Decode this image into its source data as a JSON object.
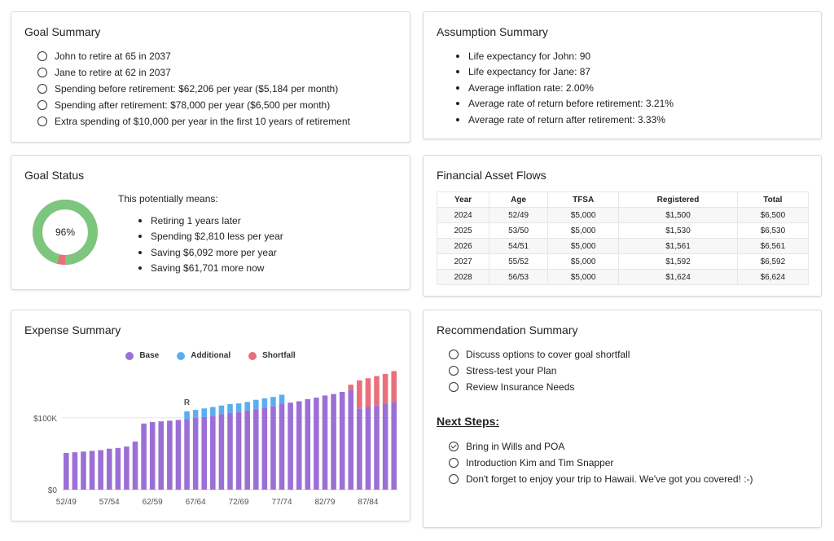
{
  "goal_summary": {
    "title": "Goal Summary",
    "items": [
      "John to retire at 65 in 2037",
      "Jane to retire at 62 in 2037",
      "Spending before retirement: $62,206 per year ($5,184 per month)",
      "Spending after retirement: $78,000 per year ($6,500 per month)",
      "Extra spending of $10,000 per year in the first 10 years of retirement"
    ]
  },
  "assumption_summary": {
    "title": "Assumption Summary",
    "items": [
      "Life expectancy for John: 90",
      "Life expectancy for Jane: 87",
      "Average inflation rate: 2.00%",
      "Average rate of return before retirement: 3.21%",
      "Average rate of return after retirement: 3.33%"
    ]
  },
  "goal_status": {
    "title": "Goal Status",
    "percent_label": "96%",
    "percent": 0.96,
    "means_title": "This potentially means:",
    "items": [
      "Retiring 1 years later",
      "Spending $2,810 less per year",
      "Saving $6,092 more per year",
      "Saving $61,701 more now"
    ],
    "colors": {
      "achieved": "#7dc67e",
      "shortfall": "#e8707a"
    }
  },
  "asset_flows": {
    "title": "Financial Asset Flows",
    "headers": [
      "Year",
      "Age",
      "TFSA",
      "Registered",
      "Total"
    ],
    "rows": [
      [
        "2024",
        "52/49",
        "$5,000",
        "$1,500",
        "$6,500"
      ],
      [
        "2025",
        "53/50",
        "$5,000",
        "$1,530",
        "$6,530"
      ],
      [
        "2026",
        "54/51",
        "$5,000",
        "$1,561",
        "$6,561"
      ],
      [
        "2027",
        "55/52",
        "$5,000",
        "$1,592",
        "$6,592"
      ],
      [
        "2028",
        "56/53",
        "$5,000",
        "$1,624",
        "$6,624"
      ]
    ]
  },
  "expense_summary": {
    "title": "Expense Summary",
    "legend": [
      {
        "label": "Base",
        "color": "#9c6fd6"
      },
      {
        "label": "Additional",
        "color": "#5aaef0"
      },
      {
        "label": "Shortfall",
        "color": "#e8707a"
      }
    ],
    "retire_marker": "R",
    "y_ticks": [
      "$0",
      "$100K"
    ],
    "x_ticks": [
      "52/49",
      "57/54",
      "62/59",
      "67/64",
      "72/69",
      "77/74",
      "82/79",
      "87/84"
    ]
  },
  "chart_data": {
    "type": "bar",
    "stacked": true,
    "categories": [
      "52/49",
      "53/50",
      "54/51",
      "55/52",
      "56/53",
      "57/54",
      "58/55",
      "59/56",
      "60/57",
      "61/58",
      "62/59",
      "63/60",
      "64/61",
      "65/62",
      "66/63",
      "67/64",
      "68/65",
      "69/66",
      "70/67",
      "71/68",
      "72/69",
      "73/70",
      "74/71",
      "75/72",
      "76/73",
      "77/74",
      "78/75",
      "79/76",
      "80/77",
      "81/78",
      "82/79",
      "83/80",
      "84/81",
      "85/82",
      "86/83",
      "87/84",
      "88/85",
      "89/86",
      "90/87"
    ],
    "series": [
      {
        "name": "Base",
        "values": [
          51,
          52,
          53,
          54,
          55,
          57,
          58,
          60,
          67,
          92,
          94,
          95,
          96,
          97,
          98,
          100,
          101,
          103,
          105,
          107,
          108,
          110,
          112,
          114,
          116,
          119,
          121,
          123,
          126,
          128,
          131,
          133,
          136,
          139,
          113,
          115,
          117,
          119,
          122
        ]
      },
      {
        "name": "Additional",
        "values": [
          0,
          0,
          0,
          0,
          0,
          0,
          0,
          0,
          0,
          0,
          0,
          0,
          0,
          0,
          11,
          11,
          12,
          12,
          12,
          12,
          12,
          12,
          13,
          13,
          13,
          13,
          0,
          0,
          0,
          0,
          0,
          0,
          0,
          0,
          0,
          0,
          0,
          0,
          0
        ]
      },
      {
        "name": "Shortfall",
        "values": [
          0,
          0,
          0,
          0,
          0,
          0,
          0,
          0,
          0,
          0,
          0,
          0,
          0,
          0,
          0,
          0,
          0,
          0,
          0,
          0,
          0,
          0,
          0,
          0,
          0,
          0,
          0,
          0,
          0,
          0,
          0,
          0,
          0,
          7,
          39,
          40,
          41,
          42,
          43
        ]
      }
    ],
    "ylim": [
      0,
      170
    ],
    "y_tick_values": [
      0,
      100
    ],
    "retire_index": 14
  },
  "recommendation_summary": {
    "title": "Recommendation Summary",
    "items": [
      "Discuss options to cover goal shortfall",
      "Stress-test your Plan",
      "Review Insurance Needs"
    ],
    "next_steps_title": "Next Steps:",
    "next_steps": [
      {
        "label": "Bring in Wills and POA",
        "done": true
      },
      {
        "label": "Introduction Kim and Tim Snapper",
        "done": false
      },
      {
        "label": "Don't forget to enjoy your trip to Hawaii. We've got you covered! :-)",
        "done": false
      }
    ]
  }
}
